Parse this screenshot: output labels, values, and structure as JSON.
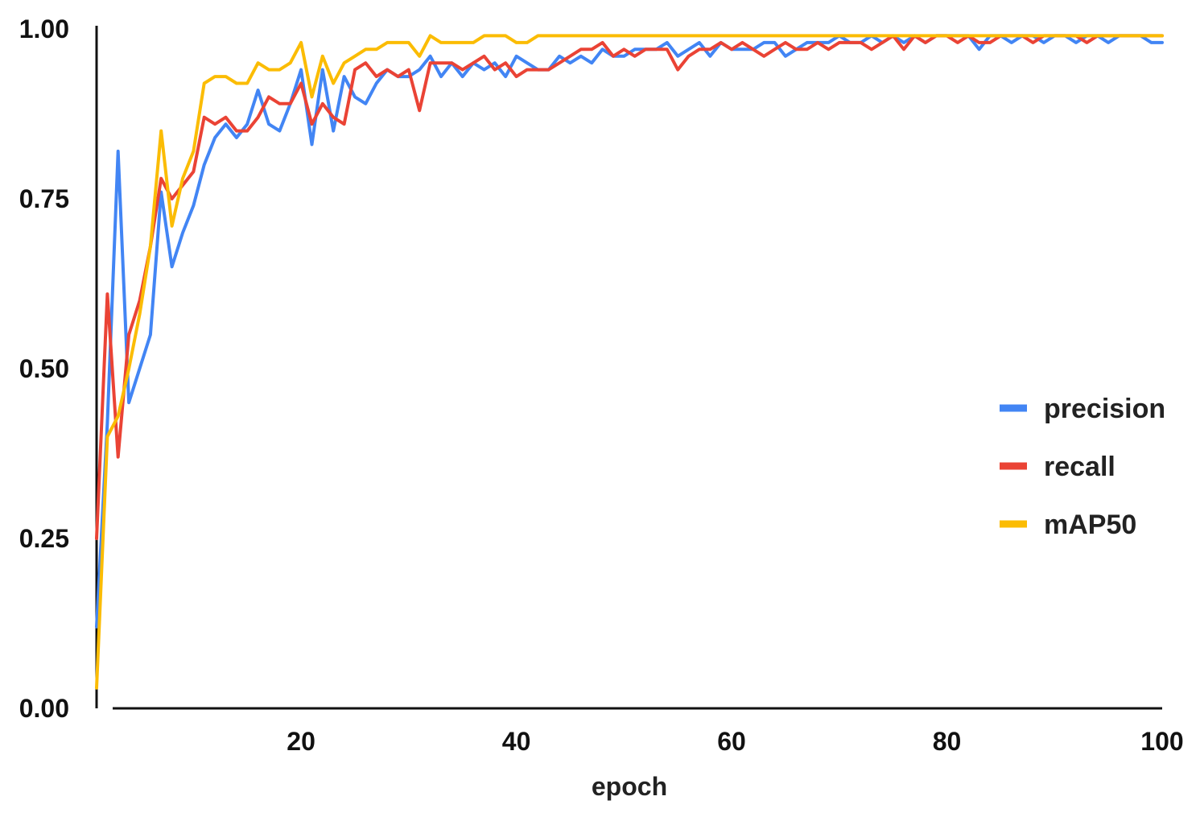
{
  "chart_data": {
    "type": "line",
    "title": "",
    "xlabel": "epoch",
    "ylabel": "",
    "xlim": [
      1,
      100
    ],
    "ylim": [
      0,
      1
    ],
    "x_ticks": [
      20,
      40,
      60,
      80,
      100
    ],
    "x_tick_labels": [
      "20",
      "40",
      "60",
      "80",
      "100"
    ],
    "y_ticks": [
      0,
      0.25,
      0.5,
      0.75,
      1.0
    ],
    "y_tick_labels": [
      "0.00",
      "0.25",
      "0.50",
      "0.75",
      "1.00"
    ],
    "grid": false,
    "legend_position": "right-middle",
    "x": [
      1,
      2,
      3,
      4,
      5,
      6,
      7,
      8,
      9,
      10,
      11,
      12,
      13,
      14,
      15,
      16,
      17,
      18,
      19,
      20,
      21,
      22,
      23,
      24,
      25,
      26,
      27,
      28,
      29,
      30,
      31,
      32,
      33,
      34,
      35,
      36,
      37,
      38,
      39,
      40,
      41,
      42,
      43,
      44,
      45,
      46,
      47,
      48,
      49,
      50,
      51,
      52,
      53,
      54,
      55,
      56,
      57,
      58,
      59,
      60,
      61,
      62,
      63,
      64,
      65,
      66,
      67,
      68,
      69,
      70,
      71,
      72,
      73,
      74,
      75,
      76,
      77,
      78,
      79,
      80,
      81,
      82,
      83,
      84,
      85,
      86,
      87,
      88,
      89,
      90,
      91,
      92,
      93,
      94,
      95,
      96,
      97,
      98,
      99,
      100
    ],
    "series": [
      {
        "name": "precision",
        "color": "#4285F4",
        "values": [
          0.12,
          0.42,
          0.82,
          0.45,
          0.5,
          0.55,
          0.76,
          0.65,
          0.7,
          0.74,
          0.8,
          0.84,
          0.86,
          0.84,
          0.86,
          0.91,
          0.86,
          0.85,
          0.89,
          0.94,
          0.83,
          0.94,
          0.85,
          0.93,
          0.9,
          0.89,
          0.92,
          0.94,
          0.93,
          0.93,
          0.94,
          0.96,
          0.93,
          0.95,
          0.93,
          0.95,
          0.94,
          0.95,
          0.93,
          0.96,
          0.95,
          0.94,
          0.94,
          0.96,
          0.95,
          0.96,
          0.95,
          0.97,
          0.96,
          0.96,
          0.97,
          0.97,
          0.97,
          0.98,
          0.96,
          0.97,
          0.98,
          0.96,
          0.98,
          0.97,
          0.97,
          0.97,
          0.98,
          0.98,
          0.96,
          0.97,
          0.98,
          0.98,
          0.98,
          0.99,
          0.98,
          0.98,
          0.99,
          0.98,
          0.99,
          0.98,
          0.99,
          0.98,
          0.99,
          0.99,
          0.99,
          0.99,
          0.97,
          0.99,
          0.99,
          0.98,
          0.99,
          0.99,
          0.98,
          0.99,
          0.99,
          0.98,
          0.99,
          0.99,
          0.98,
          0.99,
          0.99,
          0.99,
          0.98,
          0.98
        ]
      },
      {
        "name": "recall",
        "color": "#EA4335",
        "values": [
          0.25,
          0.61,
          0.37,
          0.55,
          0.6,
          0.68,
          0.78,
          0.75,
          0.77,
          0.79,
          0.87,
          0.86,
          0.87,
          0.85,
          0.85,
          0.87,
          0.9,
          0.89,
          0.89,
          0.92,
          0.86,
          0.89,
          0.87,
          0.86,
          0.94,
          0.95,
          0.93,
          0.94,
          0.93,
          0.94,
          0.88,
          0.95,
          0.95,
          0.95,
          0.94,
          0.95,
          0.96,
          0.94,
          0.95,
          0.93,
          0.94,
          0.94,
          0.94,
          0.95,
          0.96,
          0.97,
          0.97,
          0.98,
          0.96,
          0.97,
          0.96,
          0.97,
          0.97,
          0.97,
          0.94,
          0.96,
          0.97,
          0.97,
          0.98,
          0.97,
          0.98,
          0.97,
          0.96,
          0.97,
          0.98,
          0.97,
          0.97,
          0.98,
          0.97,
          0.98,
          0.98,
          0.98,
          0.97,
          0.98,
          0.99,
          0.97,
          0.99,
          0.98,
          0.99,
          0.99,
          0.98,
          0.99,
          0.98,
          0.98,
          0.99,
          0.99,
          0.99,
          0.98,
          0.99,
          0.99,
          0.99,
          0.99,
          0.98,
          0.99,
          0.99,
          0.99,
          0.99,
          0.99,
          0.99,
          0.99
        ]
      },
      {
        "name": "mAP50",
        "color": "#FBBC04",
        "values": [
          0.03,
          0.4,
          0.43,
          0.5,
          0.58,
          0.68,
          0.85,
          0.71,
          0.78,
          0.82,
          0.92,
          0.93,
          0.93,
          0.92,
          0.92,
          0.95,
          0.94,
          0.94,
          0.95,
          0.98,
          0.9,
          0.96,
          0.92,
          0.95,
          0.96,
          0.97,
          0.97,
          0.98,
          0.98,
          0.98,
          0.96,
          0.99,
          0.98,
          0.98,
          0.98,
          0.98,
          0.99,
          0.99,
          0.99,
          0.98,
          0.98,
          0.99,
          0.99,
          0.99,
          0.99,
          0.99,
          0.99,
          0.99,
          0.99,
          0.99,
          0.99,
          0.99,
          0.99,
          0.99,
          0.99,
          0.99,
          0.99,
          0.99,
          0.99,
          0.99,
          0.99,
          0.99,
          0.99,
          0.99,
          0.99,
          0.99,
          0.99,
          0.99,
          0.99,
          0.99,
          0.99,
          0.99,
          0.99,
          0.99,
          0.99,
          0.99,
          0.99,
          0.99,
          0.99,
          0.99,
          0.99,
          0.99,
          0.99,
          0.99,
          0.99,
          0.99,
          0.99,
          0.99,
          0.99,
          0.99,
          0.99,
          0.99,
          0.99,
          0.99,
          0.99,
          0.99,
          0.99,
          0.99,
          0.99,
          0.99
        ]
      }
    ]
  }
}
